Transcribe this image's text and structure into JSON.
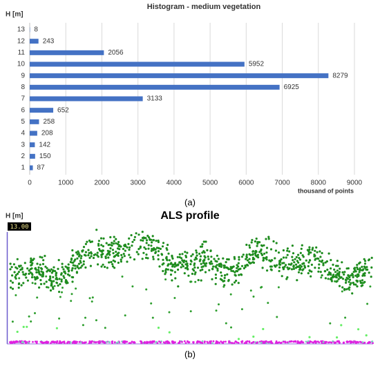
{
  "chart_data": {
    "type": "bar",
    "orientation": "horizontal",
    "title": "Histogram - medium vegetation",
    "y_label": "H [m]",
    "x_label": "thousand of points",
    "caption": "(a)",
    "categories": [
      "1",
      "2",
      "3",
      "4",
      "5",
      "6",
      "7",
      "8",
      "9",
      "10",
      "11",
      "12",
      "13"
    ],
    "values": [
      87,
      150,
      142,
      208,
      258,
      652,
      3133,
      6925,
      8279,
      5952,
      2056,
      243,
      8
    ],
    "color": "#4472c4",
    "xlim": [
      0,
      9000
    ],
    "xticks": [
      0,
      1000,
      2000,
      3000,
      4000,
      5000,
      6000,
      7000,
      8000,
      9000
    ],
    "grid": true
  },
  "profile": {
    "title": "ALS profile",
    "y_label": "H [m]",
    "top_label": "13.00",
    "caption": "(b)"
  }
}
